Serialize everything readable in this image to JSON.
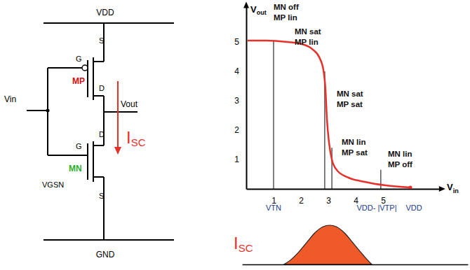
{
  "circuit": {
    "supply": "VDD",
    "ground": "GND",
    "input": "Vin",
    "output": "Vout",
    "pmos": {
      "name": "MP",
      "gate": "G",
      "drain": "D",
      "source": "S"
    },
    "nmos": {
      "name": "MN",
      "gate": "G",
      "drain": "D",
      "source": "S",
      "vgs": "VGSN"
    },
    "current": {
      "main": "I",
      "sub": "SC"
    }
  },
  "chart_data": [
    {
      "type": "line",
      "y_label": {
        "main": "V",
        "sub": "out"
      },
      "x_label": {
        "main": "V",
        "sub": "in"
      },
      "color": "#e8302a",
      "x": [
        0.05,
        0.74,
        1.51,
        2.03,
        2.41,
        2.67,
        2.82,
        2.9,
        2.95,
        3.03,
        3.13,
        3.31,
        3.69,
        4.33,
        5.1,
        6.0
      ],
      "values": [
        5.05,
        5.05,
        5.0,
        4.93,
        4.76,
        4.48,
        4.05,
        3.33,
        2.38,
        1.55,
        1.0,
        0.64,
        0.4,
        0.24,
        0.12,
        0.05
      ],
      "xlim": [
        0,
        7.1
      ],
      "ylim": [
        0,
        6.3
      ],
      "xticks": [
        1,
        2,
        3,
        4,
        5
      ],
      "yticks": [
        1,
        2,
        3,
        4,
        5
      ],
      "regions": [
        {
          "labels": [
            "MN off",
            "MP lin"
          ],
          "x": 1.0,
          "y": 5.05
        },
        {
          "labels": [
            "MN sat",
            "MP lin"
          ]
        },
        {
          "labels": [
            "MN sat",
            "MP sat"
          ],
          "x": 2.87,
          "y": 4.0
        },
        {
          "labels": [
            "MN lin",
            "MP sat"
          ],
          "x": 3.13,
          "y": 1.4
        },
        {
          "labels": [
            "MN lin",
            "MP off"
          ],
          "x": 4.92,
          "y": 0.65
        }
      ],
      "annotations": [
        {
          "text": "VTN",
          "x": 1.0
        },
        {
          "text": "VDD- |VTP|",
          "x": 4.77
        },
        {
          "text": "VDD",
          "x": 6.13
        }
      ]
    },
    {
      "type": "area",
      "label": {
        "main": "I",
        "sub": "SC"
      },
      "color": "#f05a28",
      "tick_labels": false,
      "x": [
        1.38,
        1.6,
        1.9,
        2.2,
        2.5,
        2.8,
        3.05,
        3.3,
        3.6,
        3.9,
        4.2,
        4.45,
        4.59
      ],
      "values": [
        0,
        0.1,
        0.3,
        0.55,
        0.8,
        0.96,
        1,
        0.96,
        0.8,
        0.55,
        0.3,
        0.1,
        0
      ],
      "xlim": [
        -0.15,
        8.1
      ],
      "ylim": [
        0,
        1
      ]
    }
  ]
}
